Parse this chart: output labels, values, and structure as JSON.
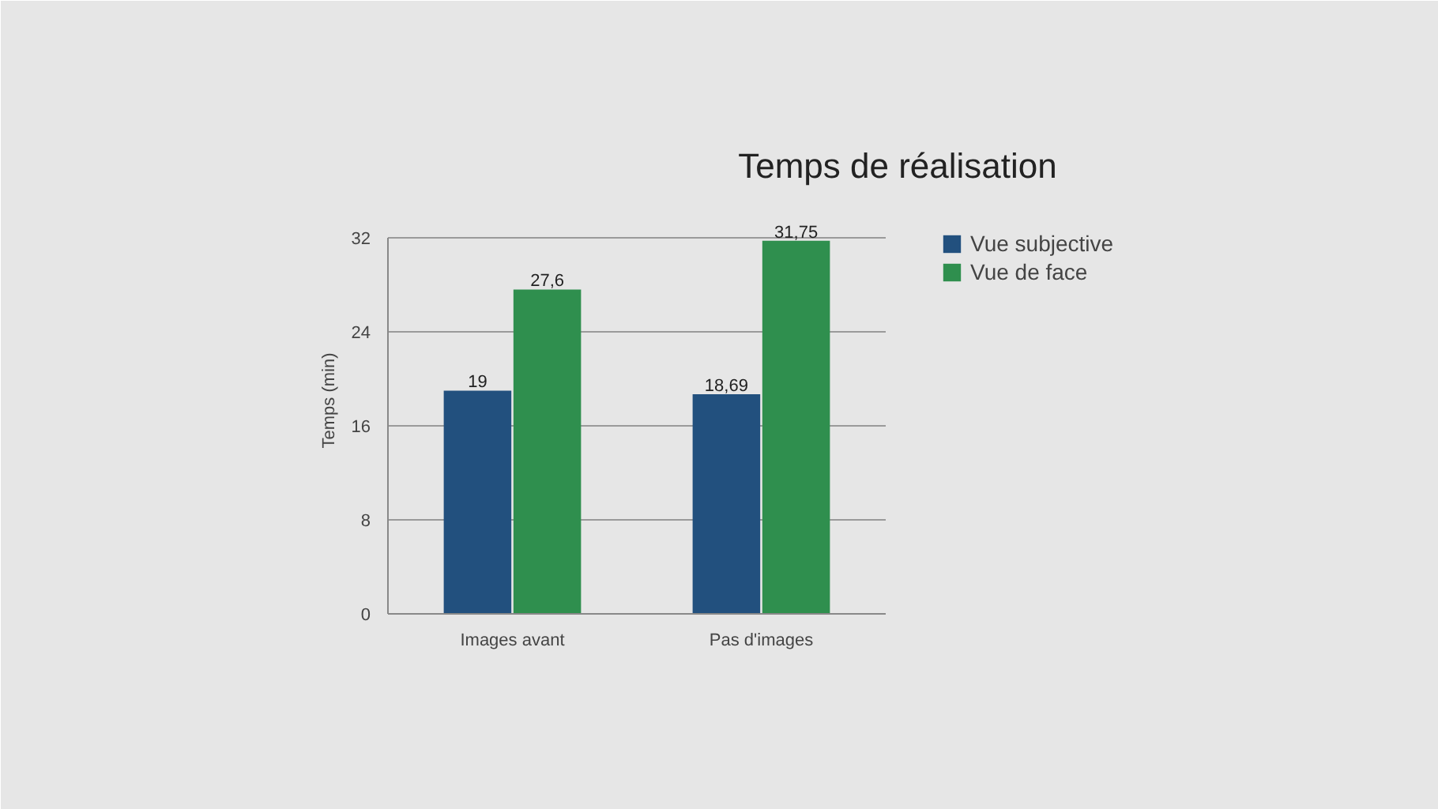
{
  "chart_data": {
    "type": "bar",
    "title": "Temps de réalisation",
    "ylabel": "Temps (min)",
    "categories": [
      "Images avant",
      "Pas d'images"
    ],
    "series": [
      {
        "name": "Vue subjective",
        "color": "#22507e",
        "values": [
          19,
          18.69
        ],
        "value_labels": [
          "19",
          "18,69"
        ]
      },
      {
        "name": "Vue de face",
        "color": "#2f8f4e",
        "values": [
          27.6,
          31.75
        ],
        "value_labels": [
          "27,6",
          "31,75"
        ]
      }
    ],
    "ylim": [
      0,
      32
    ],
    "yticks": [
      0,
      8,
      16,
      24,
      32
    ],
    "grid": "y",
    "legend": "right"
  }
}
